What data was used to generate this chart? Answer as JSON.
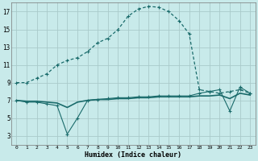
{
  "xlabel": "Humidex (Indice chaleur)",
  "bg_color": "#c8eaea",
  "grid_color": "#aacaca",
  "line_color": "#1a6b6b",
  "main_x": [
    0,
    1,
    2,
    3,
    4,
    5,
    6,
    7,
    8,
    9,
    10,
    11,
    12,
    13,
    14,
    15,
    16,
    17,
    18,
    19,
    20,
    21,
    22,
    23
  ],
  "main_y": [
    9.0,
    9.0,
    9.5,
    10.0,
    11.0,
    11.5,
    11.8,
    12.5,
    13.5,
    14.0,
    15.0,
    16.5,
    17.3,
    17.6,
    17.5,
    17.0,
    16.0,
    14.5,
    8.2,
    8.0,
    7.8,
    8.0,
    8.2,
    7.8
  ],
  "line2_x": [
    0,
    1,
    2,
    3,
    4,
    5,
    6,
    7,
    8,
    9,
    10,
    11,
    12,
    13,
    14,
    15,
    16,
    17,
    18,
    19,
    20,
    21,
    22,
    23
  ],
  "line2_y": [
    7.0,
    6.8,
    6.8,
    6.6,
    6.4,
    3.2,
    5.0,
    7.0,
    7.1,
    7.2,
    7.3,
    7.3,
    7.4,
    7.4,
    7.5,
    7.5,
    7.5,
    7.5,
    7.8,
    8.0,
    8.2,
    5.8,
    8.5,
    7.8
  ],
  "line3_x": [
    0,
    1,
    2,
    3,
    4,
    5,
    6,
    7,
    8,
    9,
    10,
    11,
    12,
    13,
    14,
    15,
    16,
    17,
    18,
    19,
    20,
    21,
    22,
    23
  ],
  "line3_y": [
    7.0,
    6.9,
    6.9,
    6.8,
    6.7,
    6.2,
    6.8,
    7.0,
    7.1,
    7.1,
    7.2,
    7.2,
    7.3,
    7.3,
    7.4,
    7.4,
    7.4,
    7.4,
    7.5,
    7.5,
    7.6,
    7.2,
    7.8,
    7.6
  ],
  "ylim": [
    2,
    18
  ],
  "xlim": [
    -0.5,
    23.5
  ],
  "yticks": [
    3,
    5,
    7,
    9,
    11,
    13,
    15,
    17
  ],
  "xticks": [
    0,
    1,
    2,
    3,
    4,
    5,
    6,
    7,
    8,
    9,
    10,
    11,
    12,
    13,
    14,
    15,
    16,
    17,
    18,
    19,
    20,
    21,
    22,
    23
  ]
}
